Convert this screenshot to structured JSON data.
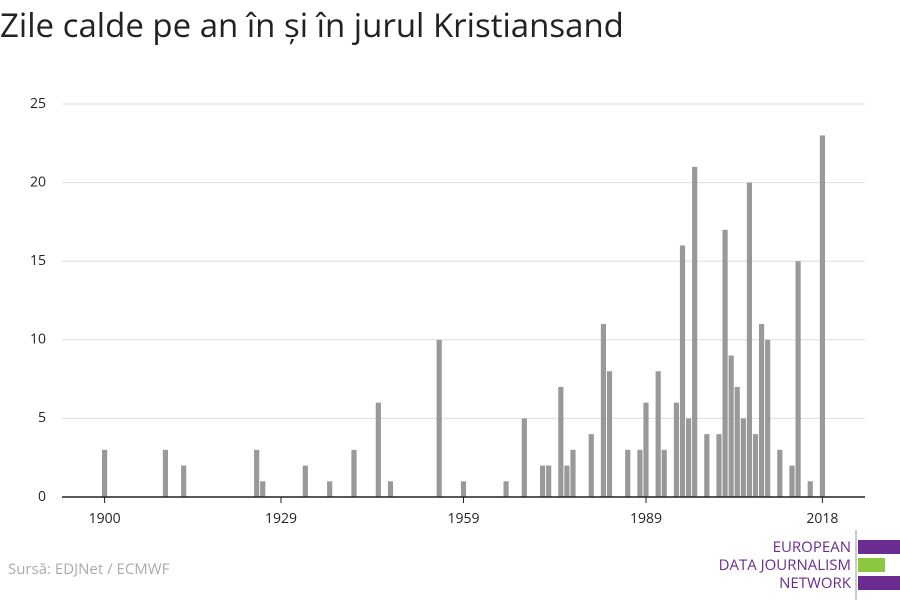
{
  "chart_data": {
    "type": "bar",
    "title": "Zile calde pe an în și în jurul Kristiansand",
    "x": [
      1900,
      1910,
      1913,
      1925,
      1926,
      1933,
      1937,
      1941,
      1945,
      1947,
      1955,
      1959,
      1966,
      1969,
      1972,
      1973,
      1975,
      1976,
      1977,
      1980,
      1982,
      1983,
      1986,
      1988,
      1989,
      1991,
      1992,
      1994,
      1995,
      1996,
      1997,
      1999,
      2001,
      2002,
      2003,
      2004,
      2005,
      2006,
      2007,
      2008,
      2009,
      2011,
      2013,
      2014,
      2016,
      2018
    ],
    "values": [
      3,
      3,
      2,
      3,
      1,
      2,
      1,
      3,
      6,
      1,
      10,
      1,
      1,
      5,
      2,
      2,
      7,
      2,
      3,
      4,
      11,
      8,
      3,
      3,
      6,
      8,
      3,
      6,
      16,
      5,
      21,
      4,
      4,
      17,
      9,
      7,
      5,
      20,
      4,
      11,
      10,
      3,
      2,
      15,
      1,
      23
    ],
    "color": "#999999",
    "xlim": [
      1893,
      2025
    ],
    "xticks": [
      1900,
      1929,
      1959,
      1989,
      2018
    ],
    "ylim": [
      0,
      25
    ],
    "yticks": [
      0,
      5,
      10,
      15,
      20,
      25
    ],
    "grid": true,
    "source": "Sursă: EDJNet / ECMWF",
    "logo": [
      "EUROPEAN",
      "DATA JOURNALISM",
      "NETWORK"
    ]
  }
}
